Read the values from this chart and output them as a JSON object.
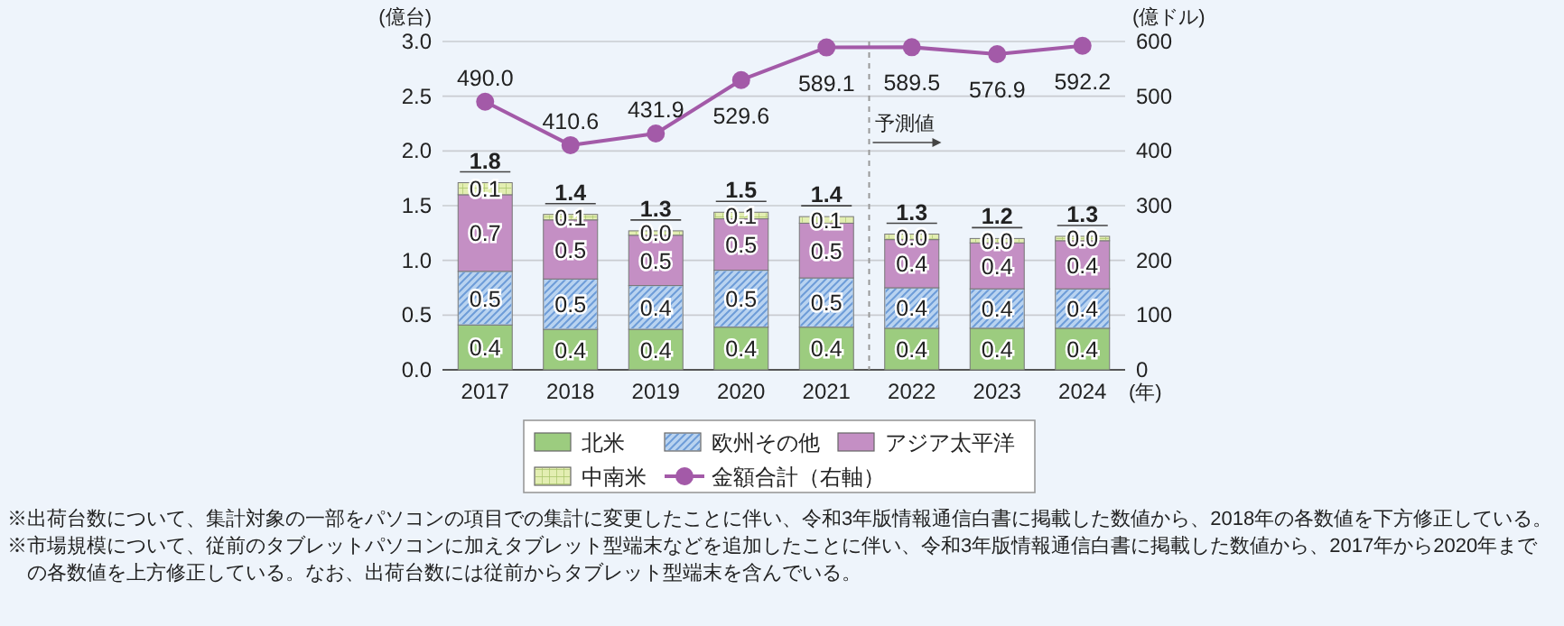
{
  "chart_data": {
    "type": "bar",
    "stacked": true,
    "ylabel": "(億台)",
    "y2label": "(億ドル)",
    "xlabel": "(年)",
    "x": [
      2017,
      2018,
      2019,
      2020,
      2021,
      2022,
      2023,
      2024
    ],
    "xlim": [
      2016.5,
      2024.5
    ],
    "xticks": [
      2017,
      2018,
      2019,
      2020,
      2021,
      2022,
      2023,
      2024
    ],
    "ylim": [
      0,
      3
    ],
    "yticks": [
      {
        "value": 0,
        "label": "0.0"
      },
      {
        "value": 0.5,
        "label": "0.5"
      },
      {
        "value": 1,
        "label": "1.0"
      },
      {
        "value": 1.5,
        "label": "1.5"
      },
      {
        "value": 2,
        "label": "2.0"
      },
      {
        "value": 2.5,
        "label": "2.5"
      },
      {
        "value": 3,
        "label": "3.0"
      }
    ],
    "y2lim": [
      0,
      600
    ],
    "y2ticks": [
      0,
      100,
      200,
      300,
      400,
      500,
      600
    ],
    "grid": "y",
    "legend": "bottom",
    "series": [
      {
        "name": "北米",
        "color": "#9ccc7f",
        "values": [
          0.41,
          0.37,
          0.37,
          0.39,
          0.39,
          0.38,
          0.38,
          0.38
        ],
        "value_labels": [
          "0.4",
          "0.4",
          "0.4",
          "0.4",
          "0.4",
          "0.4",
          "0.4",
          "0.4"
        ]
      },
      {
        "name": "欧州その他",
        "color": "#b9d3f0",
        "values": [
          0.49,
          0.46,
          0.4,
          0.52,
          0.45,
          0.37,
          0.36,
          0.36
        ],
        "value_labels": [
          "0.5",
          "0.5",
          "0.4",
          "0.5",
          "0.5",
          "0.4",
          "0.4",
          "0.4"
        ]
      },
      {
        "name": "アジア太平洋",
        "color": "#c48fc4",
        "values": [
          0.7,
          0.54,
          0.46,
          0.47,
          0.5,
          0.44,
          0.42,
          0.44
        ],
        "value_labels": [
          "0.7",
          "0.5",
          "0.5",
          "0.5",
          "0.5",
          "0.4",
          "0.4",
          "0.4"
        ]
      },
      {
        "name": "中南米",
        "color": "#e3eeb2",
        "values": [
          0.11,
          0.05,
          0.04,
          0.06,
          0.06,
          0.05,
          0.04,
          0.04
        ],
        "value_labels": [
          "0.1",
          "0.1",
          "0.0",
          "0.1",
          "0.1",
          "0.0",
          "0.0",
          "0.0"
        ]
      },
      {
        "name": "金額合計（右軸）",
        "type": "line",
        "axis": "y2",
        "marker": "circle",
        "color": "#a35aa8",
        "values": [
          490.0,
          410.6,
          431.9,
          529.6,
          589.1,
          589.5,
          576.9,
          592.2
        ],
        "value_labels": [
          "490.0",
          "410.6",
          "431.9",
          "529.6",
          "589.1",
          "589.5",
          "576.9",
          "592.2"
        ]
      }
    ],
    "totals": [
      "1.8",
      "1.4",
      "1.3",
      "1.5",
      "1.4",
      "1.3",
      "1.2",
      "1.3"
    ],
    "ref_lines": [
      {
        "axis": "x",
        "value": 2021.5,
        "label": "予測値",
        "color": "#999999",
        "line_style": "dashed"
      }
    ],
    "annotations": [
      "※出荷台数について、集計対象の一部をパソコンの項目での集計に変更したことに伴い、令和3年版情報通信白書に掲載した数値から、2018年の各数値を下方修正している。",
      "※市場規模について、従前のタブレットパソコンに加えタブレット型端末などを追加したことに伴い、令和3年版情報通信白書に掲載した数値から、2017年から2020年までの各数値を上方修正している。なお、出荷台数には従前からタブレット型端末を含んでいる。"
    ]
  }
}
